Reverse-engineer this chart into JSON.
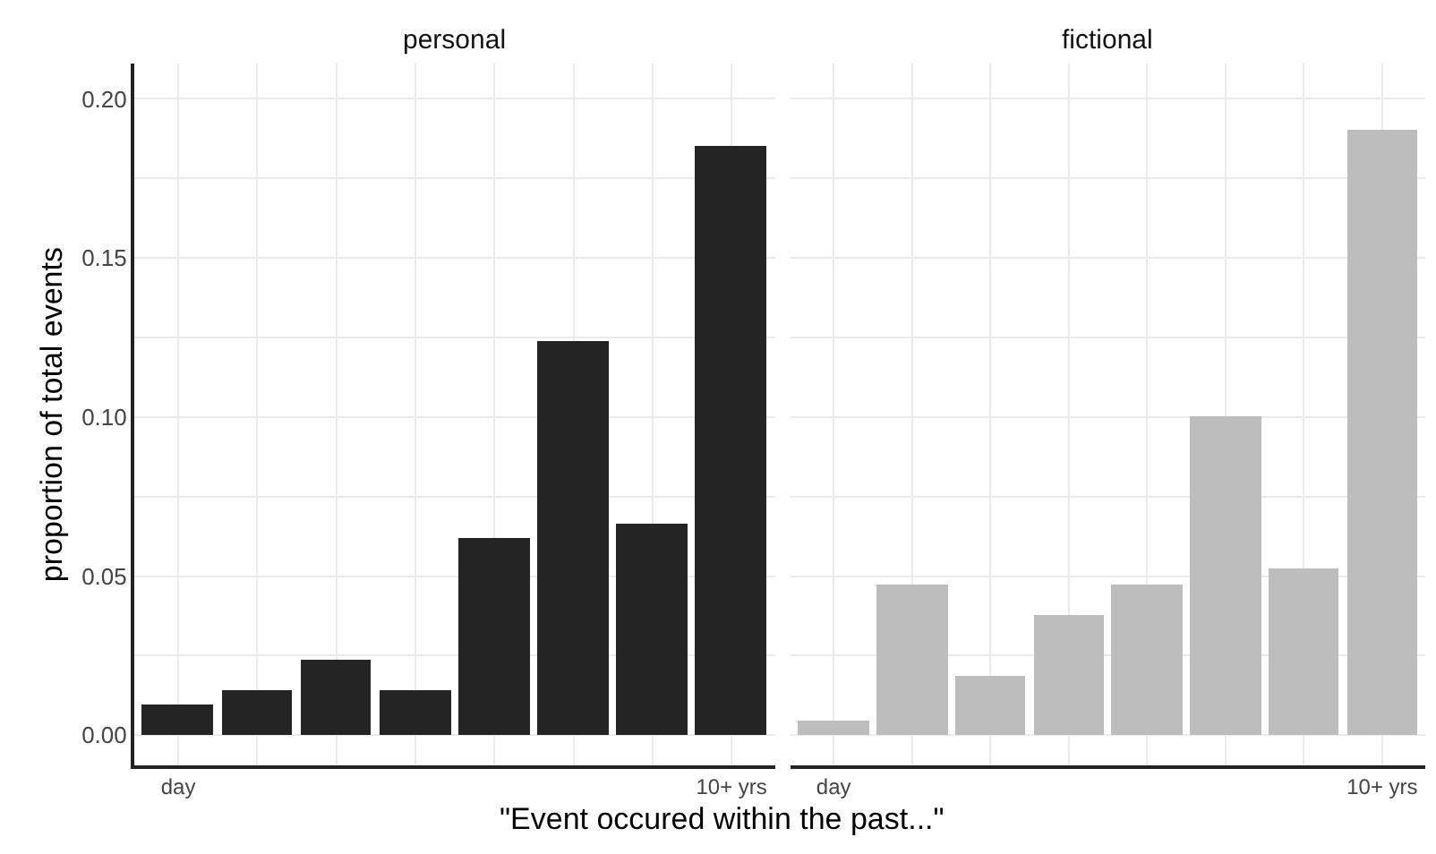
{
  "chart_data": [
    {
      "type": "bar",
      "title": "personal",
      "xlabel": "\"Event occured within the past...\"",
      "ylabel": "proportion of total events",
      "categories": [
        "day",
        null,
        null,
        null,
        null,
        null,
        null,
        "10+ yrs"
      ],
      "values": [
        0.0094,
        0.014,
        0.0236,
        0.014,
        0.0617,
        0.1236,
        0.0665,
        0.1853
      ],
      "color": "#242424",
      "ylim": [
        -0.0095,
        0.211
      ],
      "yticks": [
        {
          "value": 0.0,
          "label": "0.00"
        },
        {
          "value": 0.025,
          "label": null
        },
        {
          "value": 0.05,
          "label": "0.05"
        },
        {
          "value": 0.075,
          "label": null
        },
        {
          "value": 0.1,
          "label": "0.10"
        },
        {
          "value": 0.125,
          "label": null
        },
        {
          "value": 0.15,
          "label": "0.15"
        },
        {
          "value": 0.175,
          "label": null
        },
        {
          "value": 0.2,
          "label": "0.20"
        }
      ],
      "grid": true
    },
    {
      "type": "bar",
      "title": "fictional",
      "categories": [
        "day",
        null,
        null,
        null,
        null,
        null,
        null,
        "10+ yrs"
      ],
      "values": [
        0.0045,
        0.0473,
        0.0187,
        0.0378,
        0.0473,
        0.1,
        0.0522,
        0.19
      ],
      "color": "#bdbdbd",
      "ylim": [
        -0.0095,
        0.211
      ],
      "yticks": [
        {
          "value": 0.0,
          "label": null
        },
        {
          "value": 0.025,
          "label": null
        },
        {
          "value": 0.05,
          "label": null
        },
        {
          "value": 0.075,
          "label": null
        },
        {
          "value": 0.1,
          "label": null
        },
        {
          "value": 0.125,
          "label": null
        },
        {
          "value": 0.15,
          "label": null
        },
        {
          "value": 0.175,
          "label": null
        },
        {
          "value": 0.2,
          "label": null
        }
      ],
      "grid": true,
      "tick_labels": "x"
    }
  ]
}
